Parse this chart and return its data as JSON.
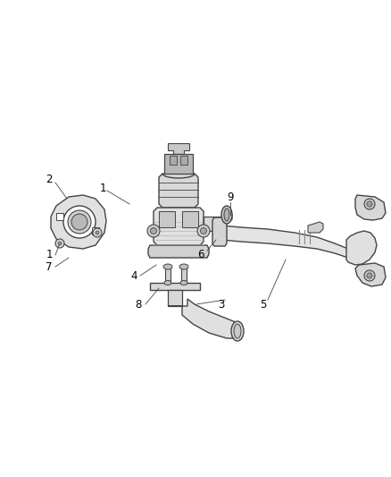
{
  "background_color": "#ffffff",
  "line_color": "#444444",
  "label_color": "#000000",
  "figure_width": 4.38,
  "figure_height": 5.33,
  "dpi": 100,
  "label_fontsize": 8.5
}
